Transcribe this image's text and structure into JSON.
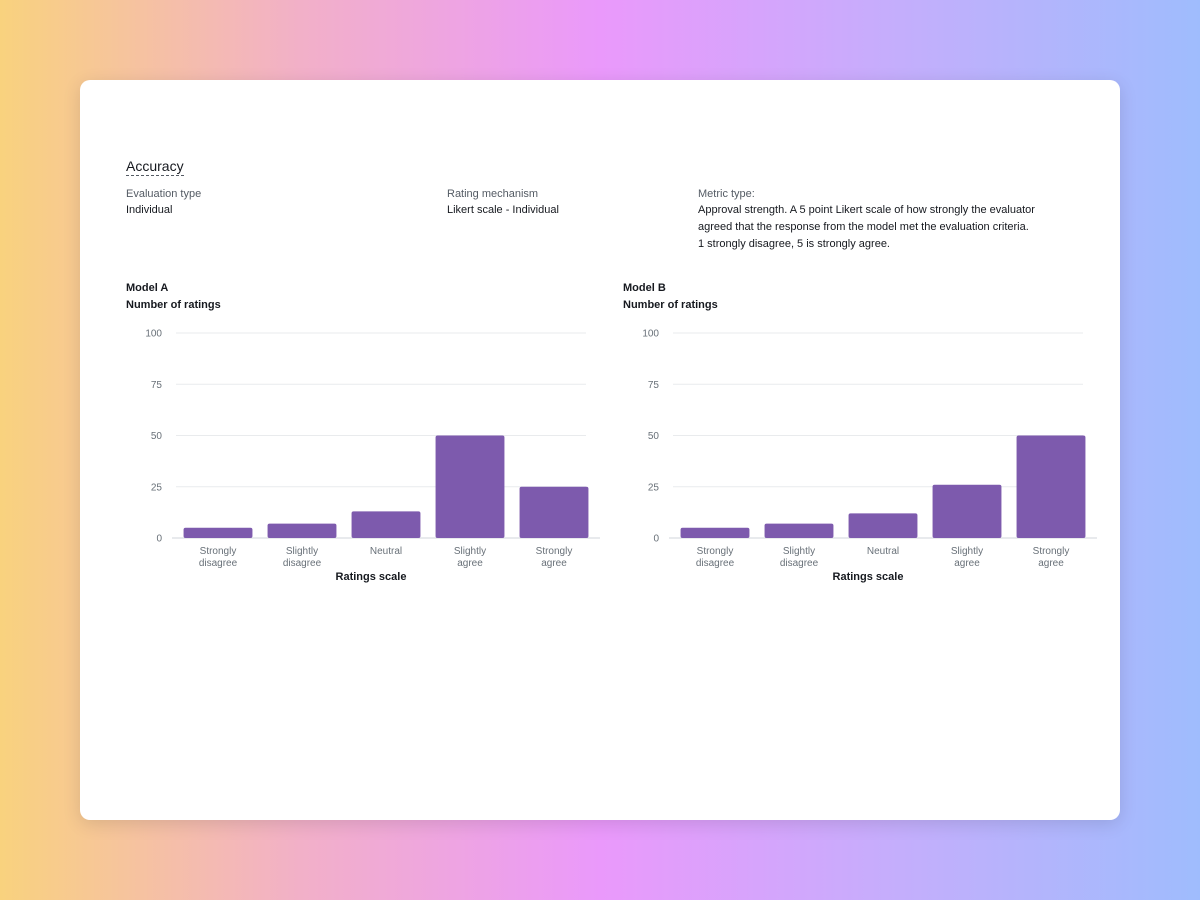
{
  "section": {
    "title": "Accuracy",
    "evaluation_type_label": "Evaluation type",
    "evaluation_type_value": "Individual",
    "rating_mechanism_label": "Rating mechanism",
    "rating_mechanism_value": "Likert scale - Individual",
    "metric_type_label": "Metric type:",
    "metric_type_lines": [
      "Approval strength. A 5 point Likert scale of how strongly the evaluator",
      "agreed that the response from the model met the evaluation criteria.",
      "1 strongly disagree, 5 is strongly agree."
    ]
  },
  "colors": {
    "bar": "#7d5aad",
    "grid": "#e9ebed",
    "axis": "#d1d5db"
  },
  "chart_data": [
    {
      "type": "bar",
      "title": "Model A",
      "ylabel": "Number of ratings",
      "xlabel": "Ratings scale",
      "categories": [
        [
          "Strongly",
          "disagree"
        ],
        [
          "Slightly",
          "disagree"
        ],
        [
          "Neutral"
        ],
        [
          "Slightly",
          "agree"
        ],
        [
          "Strongly",
          "agree"
        ]
      ],
      "values": [
        5,
        7,
        13,
        50,
        25
      ],
      "ylim": [
        0,
        100
      ],
      "yticks": [
        "0",
        "25",
        "50",
        "75",
        "100"
      ],
      "grid": true
    },
    {
      "type": "bar",
      "title": "Model B",
      "ylabel": "Number of ratings",
      "xlabel": "Ratings scale",
      "categories": [
        [
          "Strongly",
          "disagree"
        ],
        [
          "Slightly",
          "disagree"
        ],
        [
          "Neutral"
        ],
        [
          "Slightly",
          "agree"
        ],
        [
          "Strongly",
          "agree"
        ]
      ],
      "values": [
        5,
        7,
        12,
        26,
        50
      ],
      "ylim": [
        0,
        100
      ],
      "yticks": [
        "0",
        "25",
        "50",
        "75",
        "100"
      ],
      "grid": true
    }
  ]
}
